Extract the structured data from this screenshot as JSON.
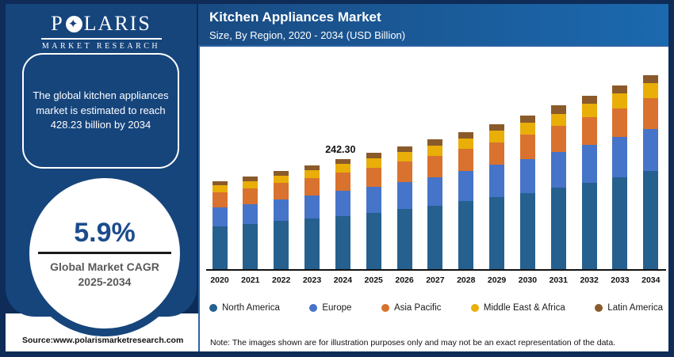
{
  "branding": {
    "logo_main_left": "P",
    "logo_star": "✦",
    "logo_main_right": "LARIS",
    "logo_sub": "MARKET RESEARCH"
  },
  "sidebar": {
    "quote": "The global kitchen appliances market is estimated to reach 428.23 billion by 2034",
    "cagr_value": "5.9%",
    "cagr_label_line1": "Global Market CAGR",
    "cagr_label_line2": "2025-2034"
  },
  "header": {
    "title": "Kitchen Appliances Market",
    "subtitle": "Size, By Region, 2020 - 2034 (USD Billion)"
  },
  "chart_data": {
    "type": "bar",
    "stacked": true,
    "title": "Kitchen Appliances Market Size, By Region, 2020 - 2034 (USD Billion)",
    "xlabel": "",
    "ylabel": "",
    "ylim": [
      0,
      430
    ],
    "grid": false,
    "legend_position": "bottom",
    "categories": [
      "2020",
      "2021",
      "2022",
      "2023",
      "2024",
      "2025",
      "2026",
      "2027",
      "2028",
      "2029",
      "2030",
      "2031",
      "2032",
      "2033",
      "2034"
    ],
    "series": [
      {
        "name": "North America",
        "color": "#25608F",
        "values": [
          94.0,
          100.0,
          106.0,
          111.7,
          117.6,
          124.7,
          132.4,
          139.6,
          149.7,
          158.6,
          168.1,
          179.4,
          191.3,
          203.2,
          216.8
        ]
      },
      {
        "name": "Europe",
        "color": "#4674C8",
        "values": [
          43.0,
          44.0,
          47.5,
          50.5,
          54.7,
          57.6,
          60.6,
          63.6,
          67.1,
          71.3,
          75.4,
          79.0,
          83.2,
          87.9,
          93.3
        ]
      },
      {
        "name": "Asia Pacific",
        "color": "#D9722E",
        "values": [
          33.0,
          34.5,
          37.0,
          38.6,
          40.4,
          42.2,
          44.5,
          47.5,
          48.7,
          50.5,
          53.5,
          57.6,
          61.2,
          64.2,
          67.1
        ]
      },
      {
        "name": "Middle East & Africa",
        "color": "#E9AE08",
        "values": [
          15.0,
          16.0,
          16.6,
          17.8,
          19.0,
          20.2,
          20.8,
          22.6,
          23.8,
          25.5,
          26.7,
          27.3,
          29.7,
          32.1,
          33.9
        ]
      },
      {
        "name": "Latin America",
        "color": "#8A5A2B",
        "values": [
          9.0,
          9.5,
          10.0,
          10.4,
          10.6,
          11.9,
          11.9,
          13.1,
          13.7,
          14.8,
          16.0,
          17.8,
          17.8,
          18.4,
          17.1
        ]
      }
    ],
    "totals": [
      194.0,
      204.0,
      217.1,
      229.0,
      242.3,
      256.6,
      270.2,
      286.4,
      303.0,
      320.7,
      339.7,
      361.1,
      383.2,
      405.8,
      428.2
    ],
    "annotations": [
      {
        "category": "2024",
        "text": "242.30"
      }
    ]
  },
  "footer": {
    "source": "Source:www.polarismarketresearch.com",
    "note": "Note: The images shown are for illustration purposes only and may not be an exact representation of the data."
  },
  "colors": {
    "outer_border": "#0E2C57",
    "sidebar_bg": "#16457C",
    "header_gradient_left": "#1A4B82",
    "header_gradient_right": "#1B69AF",
    "cagr_value_color": "#1C4C8C",
    "cagr_label_color": "#58595B",
    "panel_border": "#2E63A4"
  }
}
